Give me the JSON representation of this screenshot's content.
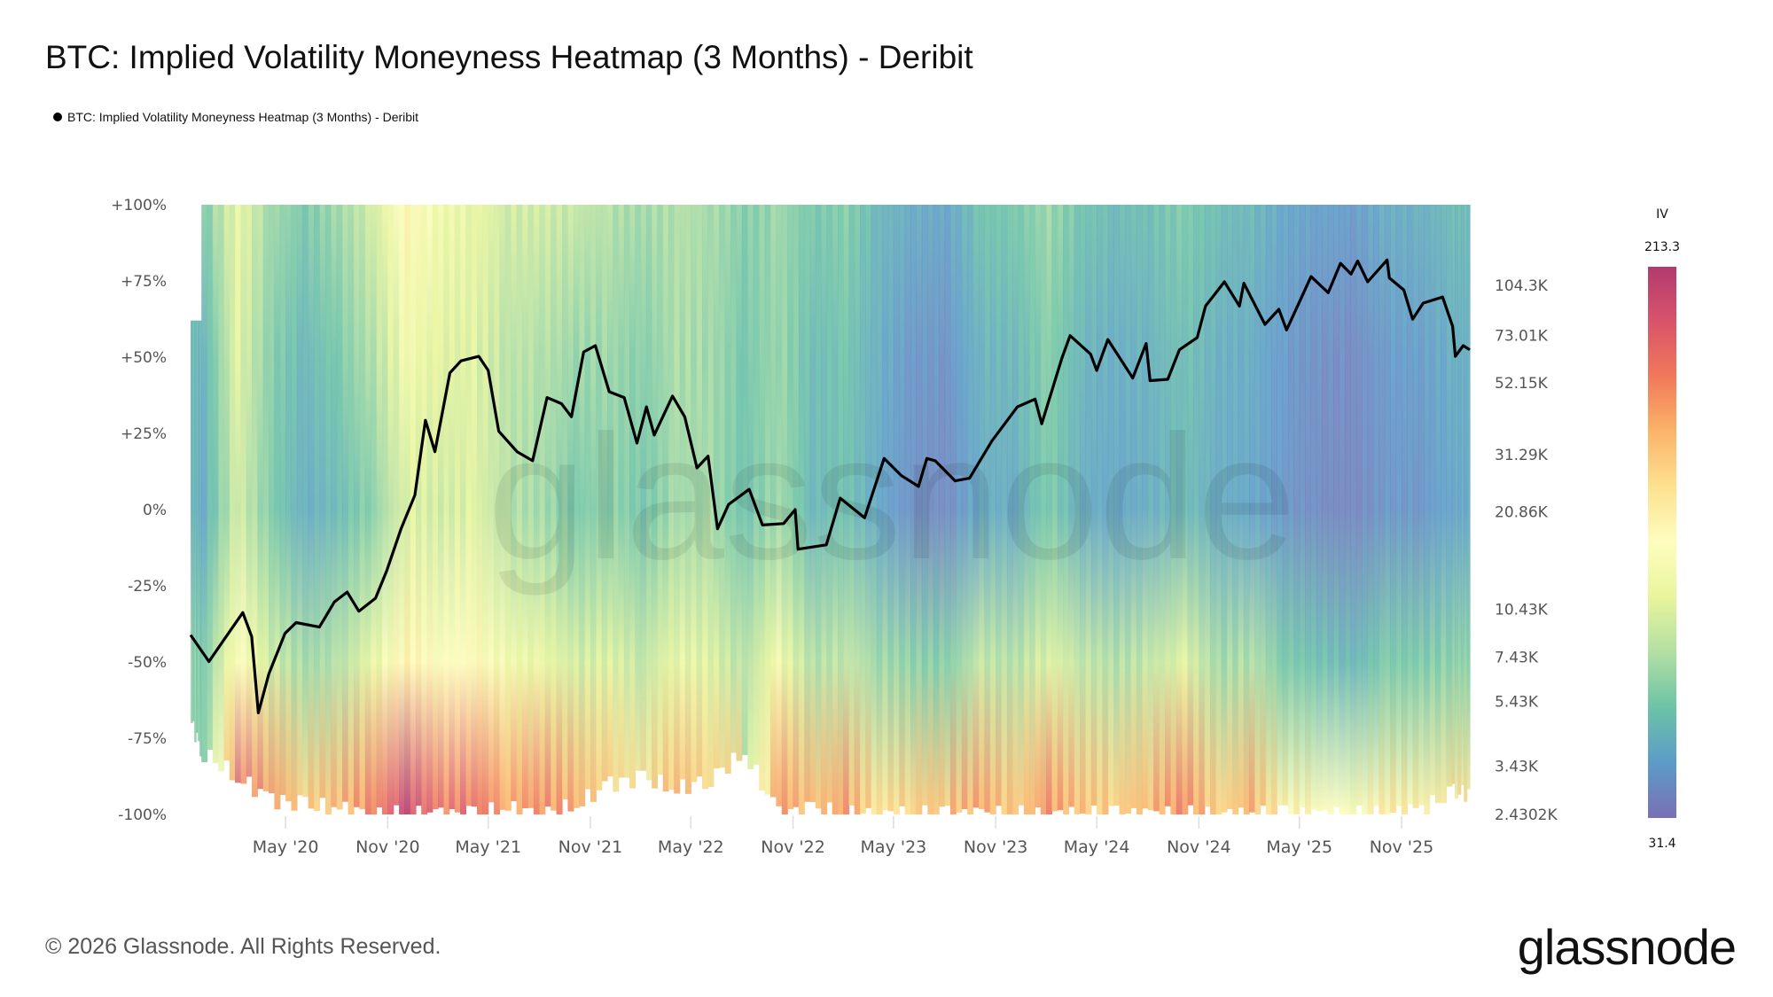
{
  "header": {
    "title": "BTC: Implied Volatility Moneyness Heatmap (3 Months) - Deribit",
    "legend_label": "BTC: Implied Volatility Moneyness Heatmap (3 Months) - Deribit"
  },
  "footer": {
    "copyright": "© 2026 Glassnode. All Rights Reserved.",
    "logo": "glassnode",
    "watermark": "glassnode"
  },
  "chart_data": {
    "type": "heatmap",
    "title": "BTC: Implied Volatility Moneyness Heatmap (3 Months) - Deribit",
    "x_range": [
      "2019-11-12",
      "2026-03-04"
    ],
    "x_ticks": [
      {
        "date": "2020-05-01",
        "label": "May '20"
      },
      {
        "date": "2020-11-01",
        "label": "Nov '20"
      },
      {
        "date": "2021-05-01",
        "label": "May '21"
      },
      {
        "date": "2021-11-01",
        "label": "Nov '21"
      },
      {
        "date": "2022-05-01",
        "label": "May '22"
      },
      {
        "date": "2022-11-01",
        "label": "Nov '22"
      },
      {
        "date": "2023-05-01",
        "label": "May '23"
      },
      {
        "date": "2023-11-01",
        "label": "Nov '23"
      },
      {
        "date": "2024-05-01",
        "label": "May '24"
      },
      {
        "date": "2024-11-01",
        "label": "Nov '24"
      },
      {
        "date": "2025-05-01",
        "label": "May '25"
      },
      {
        "date": "2025-11-01",
        "label": "Nov '25"
      }
    ],
    "y_left": {
      "range": [
        -100,
        100
      ],
      "ticks": [
        {
          "value": 100,
          "label": "+100%"
        },
        {
          "value": 75,
          "label": "+75%"
        },
        {
          "value": 50,
          "label": "+50%"
        },
        {
          "value": 25,
          "label": "+25%"
        },
        {
          "value": 0,
          "label": "0%"
        },
        {
          "value": -25,
          "label": "-25%"
        },
        {
          "value": -50,
          "label": "-50%"
        },
        {
          "value": -75,
          "label": "-75%"
        },
        {
          "value": -100,
          "label": "-100%"
        }
      ]
    },
    "y_right": {
      "scale": "log",
      "ticks": [
        {
          "value": 104300,
          "label": "104.3K"
        },
        {
          "value": 73010,
          "label": "73.01K"
        },
        {
          "value": 52150,
          "label": "52.15K"
        },
        {
          "value": 31290,
          "label": "31.29K"
        },
        {
          "value": 20860,
          "label": "20.86K"
        },
        {
          "value": 10430,
          "label": "10.43K"
        },
        {
          "value": 7430,
          "label": "7.43K"
        },
        {
          "value": 5430,
          "label": "5.43K"
        },
        {
          "value": 3430,
          "label": "3.43K"
        },
        {
          "value": 2430.2,
          "label": "2.4302K"
        }
      ]
    },
    "colorbar": {
      "title": "IV",
      "min": 31.4,
      "max": 213.3,
      "min_label": "31.4",
      "max_label": "213.3",
      "colors": [
        "#7a6fb5",
        "#5c9cc9",
        "#6cc3a6",
        "#b3dfa3",
        "#e8f59c",
        "#fdfdbf",
        "#fde28f",
        "#fcb46a",
        "#f1795a",
        "#d9546a",
        "#b23a6f"
      ]
    },
    "moneyness_levels": [
      -100,
      -50,
      0,
      50,
      100
    ],
    "heatmap": [
      {
        "date": "2019-11",
        "iv": [
          null,
          75,
          60,
          62,
          null
        ],
        "lowest_moneyness": -70
      },
      {
        "date": "2020-01",
        "iv": [
          null,
          70,
          55,
          58,
          70
        ],
        "lowest_moneyness": -80
      },
      {
        "date": "2020-03",
        "iv": [
          190,
          120,
          95,
          100,
          105
        ],
        "lowest_moneyness": -88
      },
      {
        "date": "2020-05",
        "iv": [
          170,
          95,
          70,
          72,
          80
        ],
        "lowest_moneyness": -95
      },
      {
        "date": "2020-07",
        "iv": [
          150,
          80,
          55,
          60,
          70
        ],
        "lowest_moneyness": -97
      },
      {
        "date": "2020-09",
        "iv": [
          160,
          85,
          62,
          70,
          80
        ],
        "lowest_moneyness": -98
      },
      {
        "date": "2020-11",
        "iv": [
          175,
          105,
          75,
          85,
          95
        ],
        "lowest_moneyness": -100
      },
      {
        "date": "2021-01",
        "iv": [
          205,
          130,
          100,
          110,
          125
        ],
        "lowest_moneyness": -100
      },
      {
        "date": "2021-03",
        "iv": [
          180,
          120,
          95,
          100,
          110
        ],
        "lowest_moneyness": -100
      },
      {
        "date": "2021-05",
        "iv": [
          185,
          125,
          100,
          100,
          105
        ],
        "lowest_moneyness": -100
      },
      {
        "date": "2021-07",
        "iv": [
          165,
          110,
          85,
          88,
          95
        ],
        "lowest_moneyness": -98
      },
      {
        "date": "2021-09",
        "iv": [
          175,
          105,
          80,
          85,
          95
        ],
        "lowest_moneyness": -100
      },
      {
        "date": "2021-11",
        "iv": [
          160,
          95,
          70,
          78,
          90
        ],
        "lowest_moneyness": -97
      },
      {
        "date": "2022-01",
        "iv": [
          150,
          100,
          75,
          78,
          85
        ],
        "lowest_moneyness": -90
      },
      {
        "date": "2022-03",
        "iv": [
          140,
          90,
          68,
          72,
          80
        ],
        "lowest_moneyness": -88
      },
      {
        "date": "2022-05",
        "iv": [
          160,
          105,
          80,
          82,
          85
        ],
        "lowest_moneyness": -92
      },
      {
        "date": "2022-07",
        "iv": [
          150,
          100,
          80,
          80,
          82
        ],
        "lowest_moneyness": -88
      },
      {
        "date": "2022-09",
        "iv": [
          null,
          85,
          65,
          68,
          72
        ],
        "lowest_moneyness": -80
      },
      {
        "date": "2022-11",
        "iv": [
          170,
          110,
          80,
          78,
          78
        ],
        "lowest_moneyness": -100
      },
      {
        "date": "2023-01",
        "iv": [
          155,
          85,
          60,
          62,
          68
        ],
        "lowest_moneyness": -98
      },
      {
        "date": "2023-03",
        "iv": [
          165,
          90,
          65,
          66,
          72
        ],
        "lowest_moneyness": -100
      },
      {
        "date": "2023-05",
        "iv": [
          140,
          80,
          52,
          55,
          60
        ],
        "lowest_moneyness": -100
      },
      {
        "date": "2023-07",
        "iv": [
          150,
          75,
          42,
          45,
          55
        ],
        "lowest_moneyness": -100
      },
      {
        "date": "2023-09",
        "iv": [
          155,
          72,
          40,
          44,
          52
        ],
        "lowest_moneyness": -100
      },
      {
        "date": "2023-11",
        "iv": [
          165,
          90,
          55,
          58,
          66
        ],
        "lowest_moneyness": -100
      },
      {
        "date": "2024-01",
        "iv": [
          150,
          85,
          55,
          60,
          68
        ],
        "lowest_moneyness": -100
      },
      {
        "date": "2024-03",
        "iv": [
          170,
          100,
          70,
          72,
          78
        ],
        "lowest_moneyness": -100
      },
      {
        "date": "2024-05",
        "iv": [
          155,
          90,
          55,
          58,
          66
        ],
        "lowest_moneyness": -100
      },
      {
        "date": "2024-07",
        "iv": [
          150,
          85,
          52,
          55,
          62
        ],
        "lowest_moneyness": -100
      },
      {
        "date": "2024-09",
        "iv": [
          160,
          90,
          55,
          58,
          64
        ],
        "lowest_moneyness": -100
      },
      {
        "date": "2024-11",
        "iv": [
          175,
          100,
          62,
          64,
          70
        ],
        "lowest_moneyness": -100
      },
      {
        "date": "2025-01",
        "iv": [
          145,
          80,
          55,
          56,
          62
        ],
        "lowest_moneyness": -100
      },
      {
        "date": "2025-03",
        "iv": [
          160,
          85,
          52,
          54,
          60
        ],
        "lowest_moneyness": -100
      },
      {
        "date": "2025-05",
        "iv": [
          130,
          70,
          45,
          46,
          52
        ],
        "lowest_moneyness": -100
      },
      {
        "date": "2025-07",
        "iv": [
          125,
          65,
          40,
          42,
          50
        ],
        "lowest_moneyness": -100
      },
      {
        "date": "2025-09",
        "iv": [
          120,
          60,
          38,
          40,
          48
        ],
        "lowest_moneyness": -100
      },
      {
        "date": "2025-11",
        "iv": [
          135,
          70,
          45,
          47,
          55
        ],
        "lowest_moneyness": -100
      },
      {
        "date": "2026-01",
        "iv": [
          130,
          70,
          45,
          48,
          56
        ],
        "lowest_moneyness": -98
      },
      {
        "date": "2026-03",
        "iv": [
          140,
          75,
          52,
          55,
          62
        ],
        "lowest_moneyness": -93
      }
    ],
    "price_series": {
      "color": "#000000",
      "points": [
        [
          "2019-11-12",
          8700
        ],
        [
          "2019-12-15",
          7200
        ],
        [
          "2020-01-15",
          8600
        ],
        [
          "2020-02-14",
          10200
        ],
        [
          "2020-03-01",
          8600
        ],
        [
          "2020-03-13",
          5000
        ],
        [
          "2020-04-01",
          6600
        ],
        [
          "2020-04-30",
          8800
        ],
        [
          "2020-05-20",
          9500
        ],
        [
          "2020-07-01",
          9200
        ],
        [
          "2020-07-28",
          11000
        ],
        [
          "2020-08-20",
          11800
        ],
        [
          "2020-09-10",
          10300
        ],
        [
          "2020-10-10",
          11300
        ],
        [
          "2020-10-30",
          13700
        ],
        [
          "2020-11-25",
          18500
        ],
        [
          "2020-12-20",
          23500
        ],
        [
          "2021-01-08",
          40000
        ],
        [
          "2021-01-25",
          32000
        ],
        [
          "2021-02-21",
          56000
        ],
        [
          "2021-03-13",
          61000
        ],
        [
          "2021-04-14",
          63000
        ],
        [
          "2021-05-01",
          57000
        ],
        [
          "2021-05-20",
          37000
        ],
        [
          "2021-06-22",
          32000
        ],
        [
          "2021-07-20",
          30000
        ],
        [
          "2021-08-15",
          47000
        ],
        [
          "2021-09-10",
          45000
        ],
        [
          "2021-09-28",
          41000
        ],
        [
          "2021-10-20",
          65000
        ],
        [
          "2021-11-10",
          68000
        ],
        [
          "2021-12-05",
          49000
        ],
        [
          "2022-01-01",
          47000
        ],
        [
          "2022-01-24",
          34000
        ],
        [
          "2022-02-10",
          44000
        ],
        [
          "2022-02-24",
          36000
        ],
        [
          "2022-03-29",
          47500
        ],
        [
          "2022-04-20",
          41000
        ],
        [
          "2022-05-12",
          28500
        ],
        [
          "2022-06-01",
          31000
        ],
        [
          "2022-06-18",
          18500
        ],
        [
          "2022-07-08",
          22000
        ],
        [
          "2022-08-14",
          24500
        ],
        [
          "2022-09-07",
          19000
        ],
        [
          "2022-10-15",
          19200
        ],
        [
          "2022-11-05",
          21200
        ],
        [
          "2022-11-10",
          16000
        ],
        [
          "2022-12-31",
          16500
        ],
        [
          "2023-01-25",
          23000
        ],
        [
          "2023-03-10",
          20000
        ],
        [
          "2023-04-14",
          30500
        ],
        [
          "2023-05-15",
          27000
        ],
        [
          "2023-06-15",
          25000
        ],
        [
          "2023-06-30",
          30500
        ],
        [
          "2023-07-15",
          30000
        ],
        [
          "2023-08-20",
          26000
        ],
        [
          "2023-09-15",
          26500
        ],
        [
          "2023-10-25",
          34500
        ],
        [
          "2023-12-10",
          44000
        ],
        [
          "2024-01-11",
          46500
        ],
        [
          "2024-01-23",
          39000
        ],
        [
          "2024-02-28",
          62000
        ],
        [
          "2024-03-14",
          73000
        ],
        [
          "2024-04-20",
          64000
        ],
        [
          "2024-05-01",
          57000
        ],
        [
          "2024-05-21",
          71000
        ],
        [
          "2024-07-05",
          54000
        ],
        [
          "2024-07-29",
          69000
        ],
        [
          "2024-08-05",
          53000
        ],
        [
          "2024-09-06",
          53500
        ],
        [
          "2024-09-27",
          66000
        ],
        [
          "2024-10-29",
          72000
        ],
        [
          "2024-11-13",
          90000
        ],
        [
          "2024-12-17",
          107000
        ],
        [
          "2025-01-13",
          90000
        ],
        [
          "2025-01-21",
          106000
        ],
        [
          "2025-02-28",
          79000
        ],
        [
          "2025-03-25",
          88000
        ],
        [
          "2025-04-08",
          76000
        ],
        [
          "2025-05-22",
          111000
        ],
        [
          "2025-06-22",
          99000
        ],
        [
          "2025-07-14",
          122000
        ],
        [
          "2025-08-02",
          113000
        ],
        [
          "2025-08-14",
          124000
        ],
        [
          "2025-09-01",
          107000
        ],
        [
          "2025-10-06",
          125000
        ],
        [
          "2025-10-10",
          110000
        ],
        [
          "2025-11-05",
          101000
        ],
        [
          "2025-11-21",
          82000
        ],
        [
          "2025-12-10",
          92000
        ],
        [
          "2026-01-14",
          96000
        ],
        [
          "2026-02-01",
          78000
        ],
        [
          "2026-02-06",
          63000
        ],
        [
          "2026-02-20",
          68000
        ],
        [
          "2026-03-04",
          66000
        ]
      ]
    }
  }
}
